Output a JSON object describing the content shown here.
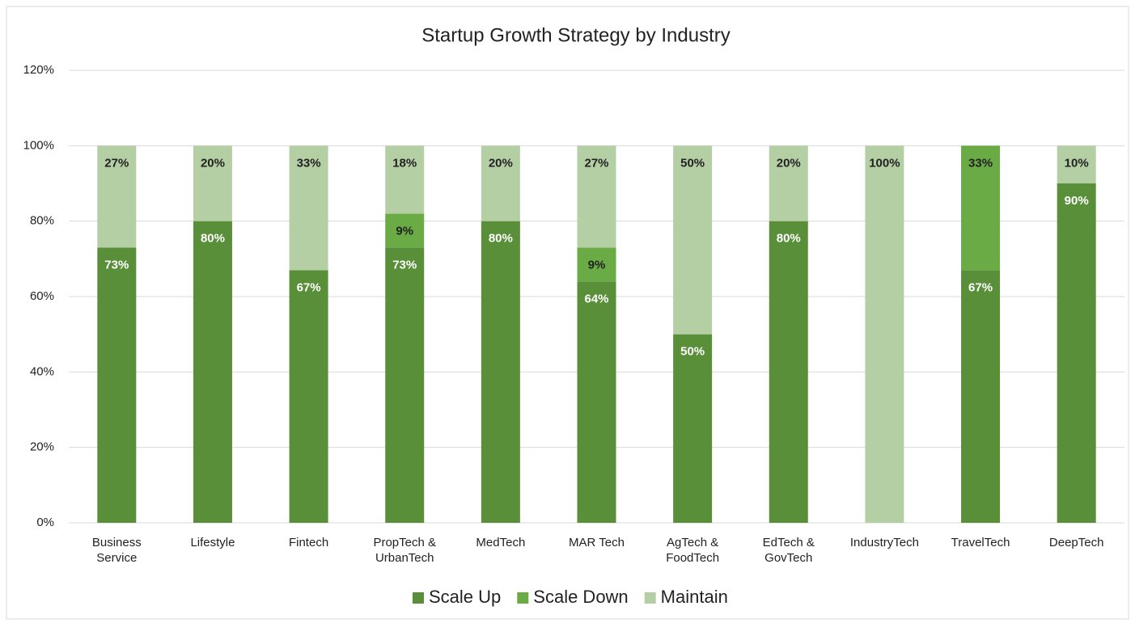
{
  "chart_data": {
    "type": "stacked_bar",
    "title": "Startup Growth Strategy by Industry",
    "categories": [
      "Business Service",
      "Lifestyle",
      "Fintech",
      "PropTech & UrbanTech",
      "MedTech",
      "MAR Tech",
      "AgTech & FoodTech",
      "EdTech & GovTech",
      "IndustryTech",
      "TravelTech",
      "DeepTech"
    ],
    "series": [
      {
        "name": "Scale Up",
        "color": "#5a8f3a",
        "values": [
          73,
          80,
          67,
          73,
          80,
          64,
          50,
          80,
          0,
          67,
          90
        ],
        "value_labels": [
          "73%",
          "80%",
          "67%",
          "73%",
          "80%",
          "64%",
          "50%",
          "80%",
          null,
          "67%",
          "90%"
        ]
      },
      {
        "name": "Scale Down",
        "color": "#6aab45",
        "values": [
          0,
          0,
          0,
          9,
          0,
          9,
          0,
          0,
          0,
          33,
          0
        ],
        "value_labels": [
          null,
          null,
          null,
          "9%",
          null,
          "9%",
          null,
          null,
          null,
          "33%",
          null
        ]
      },
      {
        "name": "Maintain",
        "color": "#b5cfa5",
        "values": [
          27,
          20,
          33,
          18,
          20,
          27,
          50,
          20,
          100,
          0,
          10
        ],
        "value_labels": [
          "27%",
          "20%",
          "33%",
          "18%",
          "20%",
          "27%",
          "50%",
          "20%",
          "100%",
          null,
          "10%"
        ]
      }
    ],
    "ylim": [
      0,
      120
    ],
    "yticks": [
      {
        "value": 0,
        "label": "0%"
      },
      {
        "value": 20,
        "label": "20%"
      },
      {
        "value": 40,
        "label": "40%"
      },
      {
        "value": 60,
        "label": "60%"
      },
      {
        "value": 80,
        "label": "80%"
      },
      {
        "value": 100,
        "label": "100%"
      },
      {
        "value": 120,
        "label": "120%"
      }
    ],
    "grid": true,
    "legend": "bottom"
  }
}
